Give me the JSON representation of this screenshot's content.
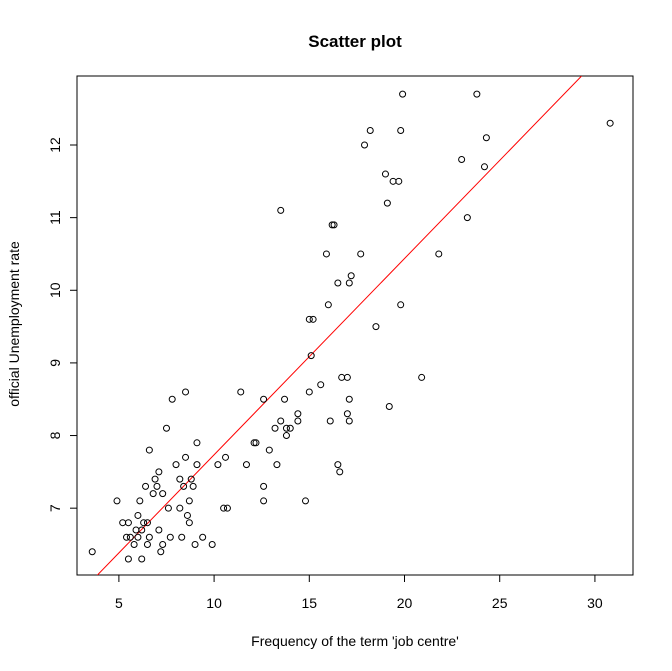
{
  "chart_data": {
    "type": "scatter",
    "title": "Scatter plot",
    "xlabel": "Frequency of the term 'job centre'",
    "ylabel": "official Unemployment rate",
    "xlim": [
      2.8,
      32.0
    ],
    "ylim": [
      6.08,
      12.95
    ],
    "x_ticks": [
      5,
      10,
      15,
      20,
      25,
      30
    ],
    "y_ticks": [
      7,
      8,
      9,
      10,
      11,
      12
    ],
    "grid": false,
    "legend": "none",
    "point_color": "#000000",
    "line_color": "#ff0000",
    "regression_line": {
      "x": [
        3.8,
        29.3
      ],
      "y": [
        6.06,
        12.95
      ]
    },
    "points": [
      [
        3.6,
        6.4
      ],
      [
        4.9,
        7.1
      ],
      [
        5.2,
        6.8
      ],
      [
        5.4,
        6.6
      ],
      [
        5.5,
        6.3
      ],
      [
        5.5,
        6.8
      ],
      [
        5.6,
        6.6
      ],
      [
        5.8,
        6.5
      ],
      [
        5.9,
        6.7
      ],
      [
        6.0,
        6.6
      ],
      [
        6.0,
        6.9
      ],
      [
        6.1,
        7.1
      ],
      [
        6.2,
        6.3
      ],
      [
        6.2,
        6.7
      ],
      [
        6.3,
        6.8
      ],
      [
        6.4,
        7.3
      ],
      [
        6.5,
        6.5
      ],
      [
        6.5,
        6.8
      ],
      [
        6.6,
        7.8
      ],
      [
        6.6,
        6.6
      ],
      [
        6.8,
        7.2
      ],
      [
        6.9,
        7.4
      ],
      [
        7.0,
        7.3
      ],
      [
        7.1,
        7.5
      ],
      [
        7.1,
        6.7
      ],
      [
        7.2,
        6.4
      ],
      [
        7.3,
        7.2
      ],
      [
        7.3,
        6.5
      ],
      [
        7.5,
        8.1
      ],
      [
        7.6,
        7.0
      ],
      [
        7.7,
        6.6
      ],
      [
        7.8,
        8.5
      ],
      [
        8.0,
        7.6
      ],
      [
        8.2,
        7.4
      ],
      [
        8.2,
        7.0
      ],
      [
        8.3,
        6.6
      ],
      [
        8.4,
        7.3
      ],
      [
        8.5,
        8.6
      ],
      [
        8.5,
        7.7
      ],
      [
        8.6,
        6.9
      ],
      [
        8.7,
        7.1
      ],
      [
        8.7,
        6.8
      ],
      [
        8.8,
        7.4
      ],
      [
        8.9,
        7.3
      ],
      [
        9.0,
        6.5
      ],
      [
        9.1,
        7.9
      ],
      [
        9.1,
        7.6
      ],
      [
        9.4,
        6.6
      ],
      [
        9.9,
        6.5
      ],
      [
        10.2,
        7.6
      ],
      [
        10.5,
        7.0
      ],
      [
        10.6,
        7.7
      ],
      [
        10.7,
        7.0
      ],
      [
        11.4,
        8.6
      ],
      [
        11.7,
        7.6
      ],
      [
        12.1,
        7.9
      ],
      [
        12.2,
        7.9
      ],
      [
        12.6,
        8.5
      ],
      [
        12.6,
        7.3
      ],
      [
        12.6,
        7.1
      ],
      [
        12.9,
        7.8
      ],
      [
        13.2,
        8.1
      ],
      [
        13.3,
        7.6
      ],
      [
        13.5,
        8.2
      ],
      [
        13.5,
        11.1
      ],
      [
        13.7,
        8.5
      ],
      [
        13.8,
        8.0
      ],
      [
        13.8,
        8.1
      ],
      [
        14.0,
        8.1
      ],
      [
        14.4,
        8.2
      ],
      [
        14.4,
        8.3
      ],
      [
        14.8,
        7.1
      ],
      [
        15.0,
        8.6
      ],
      [
        15.0,
        9.6
      ],
      [
        15.1,
        9.1
      ],
      [
        15.2,
        9.6
      ],
      [
        15.6,
        8.7
      ],
      [
        15.9,
        10.5
      ],
      [
        16.0,
        9.8
      ],
      [
        16.1,
        8.2
      ],
      [
        16.2,
        10.9
      ],
      [
        16.3,
        10.9
      ],
      [
        16.5,
        10.1
      ],
      [
        16.5,
        7.6
      ],
      [
        16.6,
        7.5
      ],
      [
        16.7,
        8.8
      ],
      [
        17.0,
        8.3
      ],
      [
        17.0,
        8.8
      ],
      [
        17.1,
        10.1
      ],
      [
        17.1,
        8.5
      ],
      [
        17.1,
        8.2
      ],
      [
        17.2,
        10.2
      ],
      [
        17.7,
        10.5
      ],
      [
        17.9,
        12.0
      ],
      [
        18.2,
        12.2
      ],
      [
        18.5,
        9.5
      ],
      [
        19.0,
        11.6
      ],
      [
        19.1,
        11.2
      ],
      [
        19.2,
        8.4
      ],
      [
        19.4,
        11.5
      ],
      [
        19.7,
        11.5
      ],
      [
        19.8,
        9.8
      ],
      [
        19.8,
        12.2
      ],
      [
        19.9,
        12.7
      ],
      [
        20.9,
        8.8
      ],
      [
        21.8,
        10.5
      ],
      [
        23.0,
        11.8
      ],
      [
        23.3,
        11.0
      ],
      [
        23.8,
        12.7
      ],
      [
        24.2,
        11.7
      ],
      [
        24.3,
        12.1
      ],
      [
        30.8,
        12.3
      ]
    ]
  }
}
